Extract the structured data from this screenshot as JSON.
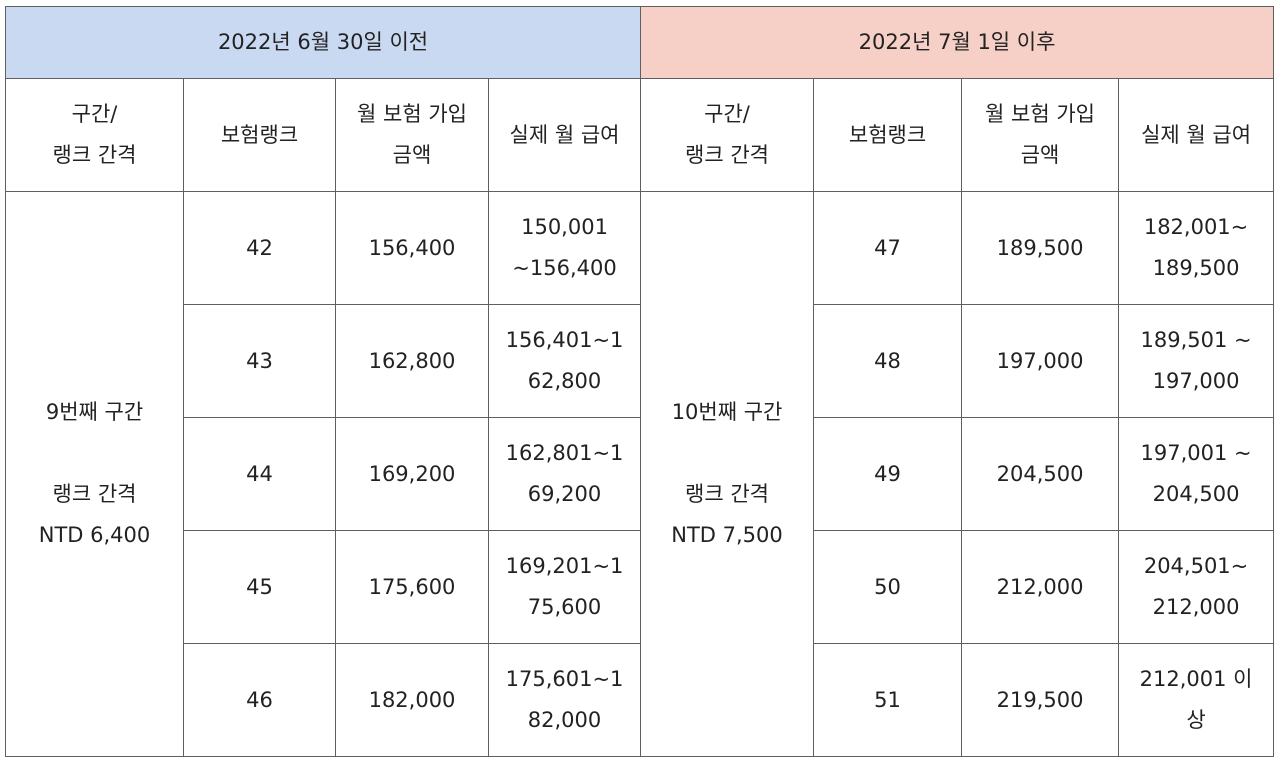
{
  "header": {
    "before": {
      "label": "2022년  6월 30일 이전",
      "color": "#c9d9f2"
    },
    "after": {
      "label": "2022년  7월 1일 이후",
      "color": "#f6cfc6"
    }
  },
  "columns": {
    "before": [
      "구간/\n랭크 간격",
      "보험랭크",
      "월 보험 가입\n금액",
      "실제 월 급여"
    ],
    "after": [
      "구간/\n랭크 간격",
      "보험랭크",
      "월 보험 가입\n금액",
      "실제 월 급여"
    ]
  },
  "before": {
    "section": "9번째   구간\n\n랭크 간격\nNTD 6,400",
    "rows": [
      {
        "rank": "42",
        "insured": "156,400",
        "salary": "150,001\n~156,400"
      },
      {
        "rank": "43",
        "insured": "162,800",
        "salary": "156,401~1\n62,800"
      },
      {
        "rank": "44",
        "insured": "169,200",
        "salary": "162,801~1\n69,200"
      },
      {
        "rank": "45",
        "insured": "175,600",
        "salary": "169,201~1\n75,600"
      },
      {
        "rank": "46",
        "insured": "182,000",
        "salary": "175,601~1\n82,000"
      }
    ]
  },
  "after": {
    "section": "10번째   구간\n\n랭크 간격\nNTD 7,500",
    "rows": [
      {
        "rank": "47",
        "insured": "189,500",
        "salary": "182,001~\n189,500"
      },
      {
        "rank": "48",
        "insured": "197,000",
        "salary": "189,501 ~\n197,000"
      },
      {
        "rank": "49",
        "insured": "204,500",
        "salary": "197,001 ~\n204,500"
      },
      {
        "rank": "50",
        "insured": "212,000",
        "salary": "204,501~\n212,000"
      },
      {
        "rank": "51",
        "insured": "219,500",
        "salary": "212,001 이\n상"
      }
    ]
  }
}
